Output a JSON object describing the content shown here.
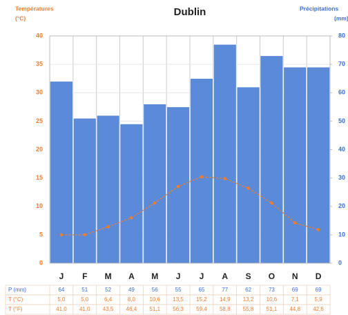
{
  "chart_data": {
    "type": "bar",
    "title": "Dublin",
    "ylabel": [
      "Températures",
      "(°C)"
    ],
    "y2label": [
      "Précipitations",
      "(mm)"
    ],
    "categories": [
      "J",
      "F",
      "M",
      "A",
      "M",
      "J",
      "J",
      "A",
      "S",
      "O",
      "N",
      "D"
    ],
    "ylim": [
      0,
      40
    ],
    "yticks": [
      0,
      5,
      10,
      15,
      20,
      25,
      30,
      35,
      40
    ],
    "y2lim": [
      0,
      80
    ],
    "y2ticks": [
      0,
      10,
      20,
      30,
      40,
      50,
      60,
      70,
      80
    ],
    "grid": true,
    "series": [
      {
        "name": "P (mm)",
        "type": "bar",
        "axis": "y2",
        "color": "#5b8ad9",
        "values": [
          64,
          51,
          52,
          49,
          56,
          55,
          65,
          77,
          62,
          73,
          69,
          69
        ]
      },
      {
        "name": "T (°C)",
        "type": "line",
        "color": "#f07d2e",
        "values": [
          5.0,
          5.0,
          6.4,
          8.0,
          10.6,
          13.5,
          15.2,
          14.9,
          13.2,
          10.6,
          7.1,
          5.9
        ],
        "value_labels": [
          "5,0",
          "5,0",
          "6,4",
          "8,0",
          "10,6",
          "13,5",
          "15,2",
          "14,9",
          "13,2",
          "10,6",
          "7,1",
          "5,9"
        ]
      }
    ],
    "table": {
      "fahrenheit": {
        "name": "T (°F)",
        "values": [
          41.0,
          41.0,
          43.5,
          46.4,
          51.1,
          56.3,
          59.4,
          58.8,
          55.8,
          51.1,
          44.8,
          42.6
        ],
        "value_labels": [
          "41,0",
          "41,0",
          "43,5",
          "46,4",
          "51,1",
          "56,3",
          "59,4",
          "58,8",
          "55,8",
          "51,1",
          "44,8",
          "42,6"
        ]
      }
    }
  }
}
